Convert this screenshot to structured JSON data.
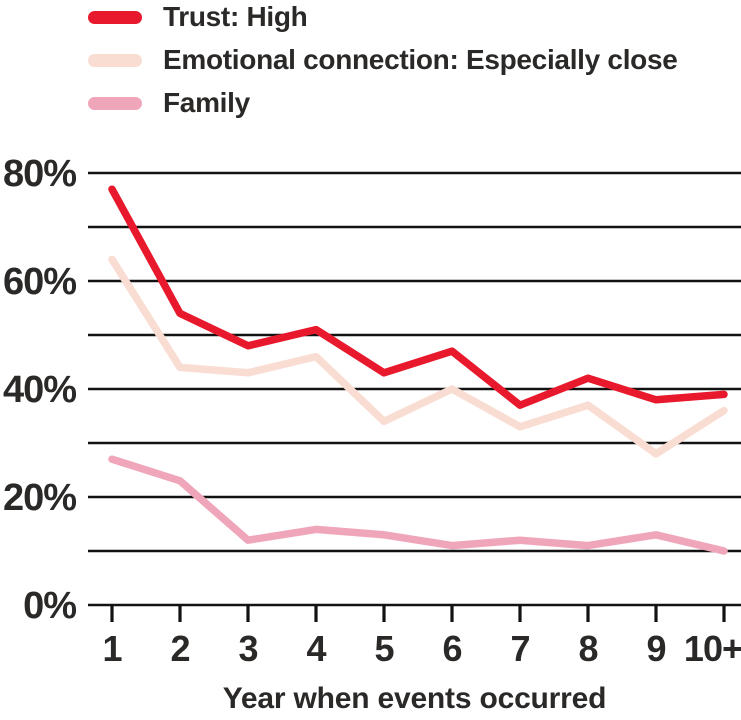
{
  "style": {
    "background": "#ffffff",
    "text_color": "#2b2928",
    "gridline_color": "#121212"
  },
  "chart_data": {
    "type": "line",
    "title": "",
    "xlabel": "Year when events occurred",
    "ylabel": "",
    "x_categories": [
      "1",
      "2",
      "3",
      "4",
      "5",
      "6",
      "7",
      "8",
      "9",
      "10+"
    ],
    "ylim": [
      0,
      80
    ],
    "y_gridline_step": 10,
    "y_tick_values": [
      80,
      60,
      40,
      20,
      0
    ],
    "y_tick_labels": [
      "80%",
      "60%",
      "40%",
      "20%",
      "0%"
    ],
    "grid": true,
    "legend_position": "top-left",
    "series": [
      {
        "name": "Trust: High",
        "color": "#e8192c",
        "values": [
          77,
          54,
          48,
          51,
          43,
          47,
          37,
          42,
          38,
          39
        ]
      },
      {
        "name": "Emotional connection: Especially close",
        "color": "#f9dcd2",
        "values": [
          64,
          44,
          43,
          46,
          34,
          40,
          33,
          37,
          28,
          36
        ]
      },
      {
        "name": "Family",
        "color": "#f0a6ba",
        "values": [
          27,
          23,
          12,
          14,
          13,
          11,
          12,
          11,
          13,
          10
        ]
      }
    ]
  }
}
